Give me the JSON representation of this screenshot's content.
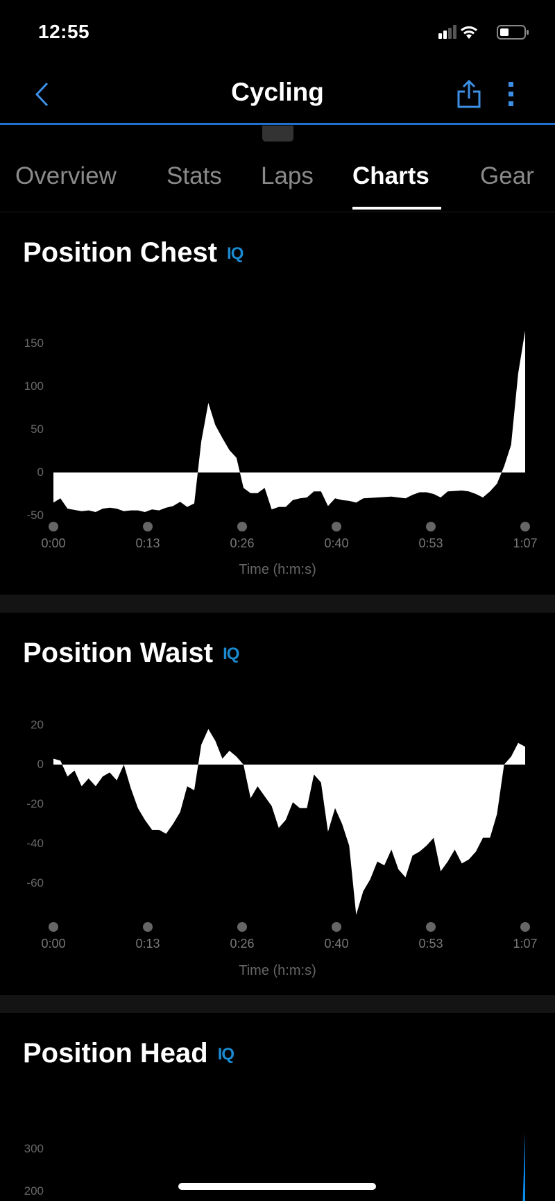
{
  "status_bar": {
    "time": "12:55",
    "icons": [
      "signal-icon",
      "wifi-icon",
      "battery-icon"
    ]
  },
  "nav": {
    "title": "Cycling",
    "back_icon": "chevron-left-icon",
    "share_icon": "share-icon",
    "more_icon": "more-vertical-icon",
    "accent": "#1f6fd1"
  },
  "tabs": [
    {
      "label": "Overview",
      "active": false
    },
    {
      "label": "Stats",
      "active": false
    },
    {
      "label": "Laps",
      "active": false
    },
    {
      "label": "Charts",
      "active": true
    },
    {
      "label": "Gear",
      "active": false
    }
  ],
  "sections": [
    {
      "title": "Position Chest",
      "badge": "IQ"
    },
    {
      "title": "Position Waist",
      "badge": "IQ"
    },
    {
      "title": "Position Head",
      "badge": "IQ"
    }
  ],
  "chart_data": [
    {
      "type": "area",
      "title": "Position Chest",
      "xlabel": "Time (h:m:s)",
      "x_ticks": [
        {
          "x": 0,
          "label": "0:00"
        },
        {
          "x": 13.4,
          "label": "0:13"
        },
        {
          "x": 26.8,
          "label": "0:26"
        },
        {
          "x": 40.2,
          "label": "0:40"
        },
        {
          "x": 53.6,
          "label": "0:53"
        },
        {
          "x": 67,
          "label": "1:07"
        }
      ],
      "y_ticks": [
        150,
        100,
        50,
        0,
        -50
      ],
      "xlim": [
        0,
        67
      ],
      "fill": "#ffffff",
      "points": [
        [
          0,
          -35
        ],
        [
          1,
          -30
        ],
        [
          2,
          -42
        ],
        [
          4,
          -45
        ],
        [
          5,
          -44
        ],
        [
          6,
          -46
        ],
        [
          7,
          -42
        ],
        [
          8,
          -41
        ],
        [
          9,
          -42
        ],
        [
          10,
          -45
        ],
        [
          11,
          -44
        ],
        [
          12,
          -44
        ],
        [
          13,
          -46
        ],
        [
          14,
          -43
        ],
        [
          15,
          -44
        ],
        [
          16,
          -41
        ],
        [
          17,
          -39
        ],
        [
          18,
          -34
        ],
        [
          19,
          -40
        ],
        [
          20,
          -36
        ],
        [
          21,
          36
        ],
        [
          22,
          81
        ],
        [
          23,
          55
        ],
        [
          24,
          40
        ],
        [
          25,
          26
        ],
        [
          26,
          17
        ],
        [
          27,
          -18
        ],
        [
          28,
          -24
        ],
        [
          29,
          -24
        ],
        [
          30,
          -18
        ],
        [
          31,
          -43
        ],
        [
          32,
          -40
        ],
        [
          33,
          -40
        ],
        [
          34,
          -32
        ],
        [
          35,
          -30
        ],
        [
          36,
          -29
        ],
        [
          37,
          -22
        ],
        [
          38,
          -22
        ],
        [
          39,
          -39
        ],
        [
          40,
          -30
        ],
        [
          41,
          -32
        ],
        [
          42,
          -33
        ],
        [
          43,
          -35
        ],
        [
          44,
          -30
        ],
        [
          46,
          -29
        ],
        [
          48,
          -28
        ],
        [
          50,
          -30
        ],
        [
          51,
          -26
        ],
        [
          52,
          -23
        ],
        [
          53,
          -23
        ],
        [
          54,
          -25
        ],
        [
          55,
          -29
        ],
        [
          56,
          -22
        ],
        [
          58,
          -21
        ],
        [
          59,
          -22
        ],
        [
          60,
          -25
        ],
        [
          61,
          -29
        ],
        [
          62,
          -22
        ],
        [
          63,
          -13
        ],
        [
          64,
          7
        ],
        [
          65,
          32
        ],
        [
          66,
          115
        ],
        [
          67,
          165
        ]
      ]
    },
    {
      "type": "area",
      "title": "Position Waist",
      "xlabel": "Time (h:m:s)",
      "x_ticks": [
        {
          "x": 0,
          "label": "0:00"
        },
        {
          "x": 13.4,
          "label": "0:13"
        },
        {
          "x": 26.8,
          "label": "0:26"
        },
        {
          "x": 40.2,
          "label": "0:40"
        },
        {
          "x": 53.6,
          "label": "0:53"
        },
        {
          "x": 67,
          "label": "1:07"
        }
      ],
      "y_ticks": [
        20,
        0,
        -20,
        -40,
        -60
      ],
      "xlim": [
        0,
        67
      ],
      "fill": "#ffffff",
      "points": [
        [
          0,
          3
        ],
        [
          1,
          2
        ],
        [
          2,
          -6
        ],
        [
          3,
          -3
        ],
        [
          4,
          -11
        ],
        [
          5,
          -7
        ],
        [
          6,
          -11
        ],
        [
          7,
          -6
        ],
        [
          8,
          -4
        ],
        [
          9,
          -8
        ],
        [
          10,
          0
        ],
        [
          11,
          -12
        ],
        [
          12,
          -22
        ],
        [
          13,
          -28
        ],
        [
          14,
          -33
        ],
        [
          15,
          -33
        ],
        [
          16,
          -35
        ],
        [
          17,
          -30
        ],
        [
          18,
          -24
        ],
        [
          19,
          -11
        ],
        [
          20,
          -13
        ],
        [
          21,
          10
        ],
        [
          22,
          18
        ],
        [
          23,
          12
        ],
        [
          24,
          3
        ],
        [
          25,
          7
        ],
        [
          26,
          4
        ],
        [
          27,
          0
        ],
        [
          28,
          -17
        ],
        [
          29,
          -11
        ],
        [
          30,
          -16
        ],
        [
          31,
          -21
        ],
        [
          32,
          -32
        ],
        [
          33,
          -28
        ],
        [
          34,
          -19
        ],
        [
          35,
          -22
        ],
        [
          36,
          -22
        ],
        [
          37,
          -5
        ],
        [
          38,
          -9
        ],
        [
          39,
          -34
        ],
        [
          40,
          -22
        ],
        [
          41,
          -30
        ],
        [
          42,
          -41
        ],
        [
          43,
          -76
        ],
        [
          44,
          -64
        ],
        [
          45,
          -58
        ],
        [
          46,
          -49
        ],
        [
          47,
          -51
        ],
        [
          48,
          -43
        ],
        [
          49,
          -53
        ],
        [
          50,
          -57
        ],
        [
          51,
          -46
        ],
        [
          52,
          -44
        ],
        [
          53,
          -41
        ],
        [
          54,
          -37
        ],
        [
          55,
          -54
        ],
        [
          56,
          -49
        ],
        [
          57,
          -43
        ],
        [
          58,
          -50
        ],
        [
          59,
          -48
        ],
        [
          60,
          -44
        ],
        [
          61,
          -37
        ],
        [
          62,
          -37
        ],
        [
          63,
          -25
        ],
        [
          64,
          0
        ],
        [
          65,
          4
        ],
        [
          66,
          11
        ],
        [
          67,
          9
        ]
      ]
    },
    {
      "type": "area",
      "title": "Position Head",
      "y_ticks": [
        300,
        200
      ],
      "xlim": [
        0,
        67
      ],
      "fill": "#0a8cf0",
      "points": [
        [
          66.5,
          100
        ],
        [
          67,
          340
        ]
      ]
    }
  ]
}
